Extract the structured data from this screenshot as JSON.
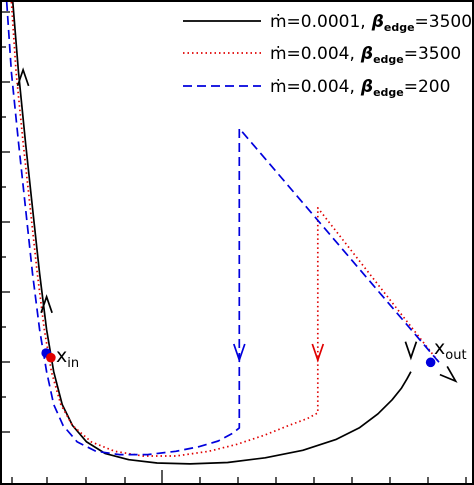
{
  "chart_data": {
    "type": "line",
    "title": "",
    "xlabel": "",
    "ylabel": "",
    "xlim": [
      0,
      1
    ],
    "ylim": [
      0,
      1
    ],
    "grid": false,
    "legend_position": "top-right",
    "legend": [
      {
        "mdot": "ṁ=0.0001,",
        "beta_sym": "β",
        "beta_sub": "edge",
        "beta_val": "=3500",
        "style": "solid",
        "color": "#000000"
      },
      {
        "mdot": "ṁ=0.004,",
        "beta_sym": "β",
        "beta_sub": "edge",
        "beta_val": "=3500",
        "style": "dotted",
        "color": "#e00000"
      },
      {
        "mdot": "ṁ=0.004,",
        "beta_sym": "β",
        "beta_sub": "edge",
        "beta_val": "=200",
        "style": "dashed",
        "color": "#0000dd"
      }
    ],
    "series": [
      {
        "color": "#000000",
        "style": "solid",
        "x": [
          0.023,
          0.035,
          0.05,
          0.065,
          0.08,
          0.095,
          0.11,
          0.128,
          0.15,
          0.18,
          0.22,
          0.27,
          0.33,
          0.4,
          0.48,
          0.56,
          0.64,
          0.71,
          0.76,
          0.8,
          0.83,
          0.85,
          0.862,
          0.87
        ],
        "y": [
          1.0,
          0.85,
          0.7,
          0.56,
          0.42,
          0.3,
          0.21,
          0.14,
          0.095,
          0.06,
          0.035,
          0.022,
          0.015,
          0.013,
          0.016,
          0.026,
          0.042,
          0.065,
          0.09,
          0.12,
          0.15,
          0.175,
          0.195,
          0.21
        ]
      },
      {
        "color": "#e00000",
        "style": "dotted",
        "x": [
          0.02,
          0.03,
          0.045,
          0.06,
          0.075,
          0.09,
          0.105,
          0.125,
          0.15,
          0.19,
          0.24,
          0.3,
          0.37,
          0.44,
          0.5,
          0.56,
          0.61,
          0.65,
          0.672,
          0.672,
          0.93
        ],
        "y": [
          1.0,
          0.85,
          0.7,
          0.56,
          0.42,
          0.3,
          0.21,
          0.14,
          0.095,
          0.06,
          0.04,
          0.03,
          0.03,
          0.04,
          0.055,
          0.075,
          0.095,
          0.11,
          0.122,
          0.56,
          0.23
        ]
      },
      {
        "color": "#0000dd",
        "style": "dashed",
        "x": [
          0.01,
          0.02,
          0.035,
          0.05,
          0.065,
          0.08,
          0.095,
          0.11,
          0.13,
          0.16,
          0.2,
          0.25,
          0.31,
          0.37,
          0.42,
          0.46,
          0.49,
          0.505,
          0.505,
          0.93
        ],
        "y": [
          1.0,
          0.85,
          0.7,
          0.56,
          0.42,
          0.3,
          0.21,
          0.14,
          0.095,
          0.06,
          0.04,
          0.033,
          0.033,
          0.04,
          0.05,
          0.062,
          0.078,
          0.09,
          0.73,
          0.23
        ]
      }
    ],
    "flow_arrows": [
      {
        "x": 0.045,
        "y": 0.855,
        "dir": "up",
        "color": "#000000"
      },
      {
        "x": 0.095,
        "y": 0.37,
        "dir": "up",
        "color": "#000000"
      },
      {
        "x": 0.505,
        "y": 0.235,
        "dir": "down",
        "color": "#0000dd"
      },
      {
        "x": 0.672,
        "y": 0.235,
        "dir": "down",
        "color": "#e00000"
      },
      {
        "x": 0.87,
        "y": 0.24,
        "dir": "down",
        "color": "#000000"
      },
      {
        "x": 0.965,
        "y": 0.19,
        "dir": "down-right",
        "color": "#000000"
      }
    ],
    "critical_points": [
      {
        "name": "x_in_blue",
        "x": 0.094,
        "y": 0.25,
        "color": "#0000dd"
      },
      {
        "name": "x_in_red",
        "x": 0.104,
        "y": 0.24,
        "color": "#e00000"
      },
      {
        "name": "x_out",
        "x": 0.912,
        "y": 0.23,
        "color": "#0000dd"
      }
    ],
    "point_labels": {
      "x_in": {
        "main": "x",
        "sub": "in"
      },
      "x_out": {
        "main": "x",
        "sub": "out"
      }
    }
  }
}
